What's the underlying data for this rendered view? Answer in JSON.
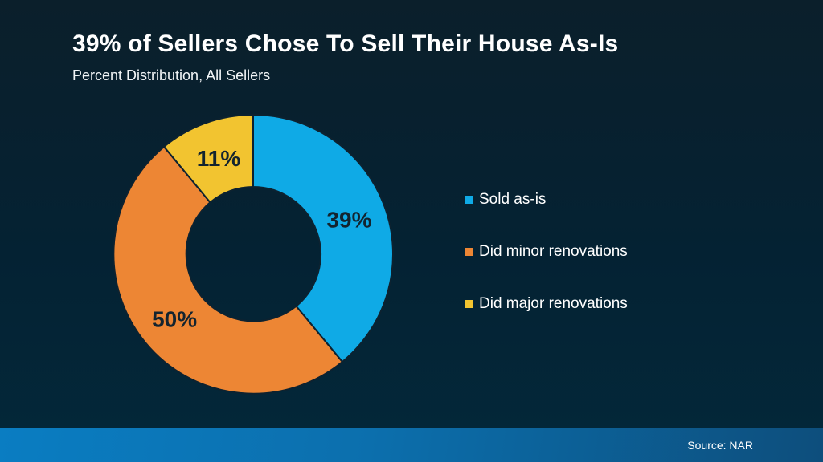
{
  "header": {
    "title": "39% of Sellers Chose To Sell Their House As-Is",
    "subtitle": "Percent Distribution, All Sellers"
  },
  "footer": {
    "source": "Source: NAR"
  },
  "colors": {
    "background_top": "#0b1f2b",
    "background_bottom": "#03283a",
    "footer_gradient_left": "#0a7dc2",
    "footer_gradient_right": "#0d4e7c",
    "slice_outline": "#0d2230",
    "slice_label_text": "#13242f",
    "legend_text": "#ffffff",
    "title_text": "#ffffff"
  },
  "chart_data": {
    "type": "pie",
    "subtype": "donut",
    "title": "39% of Sellers Chose To Sell Their House As-Is",
    "subtitle": "Percent Distribution, All Sellers",
    "unit": "%",
    "start_angle_deg": 0,
    "direction": "clockwise",
    "inner_radius_ratio": 0.48,
    "legend_position": "right",
    "slices": [
      {
        "label": "Sold as-is",
        "value": 39,
        "display": "39%",
        "color": "#0faae6"
      },
      {
        "label": "Did minor renovations",
        "value": 50,
        "display": "50%",
        "color": "#ed8634"
      },
      {
        "label": "Did major renovations",
        "value": 11,
        "display": "11%",
        "color": "#f2c430"
      }
    ],
    "source": "Source: NAR"
  }
}
